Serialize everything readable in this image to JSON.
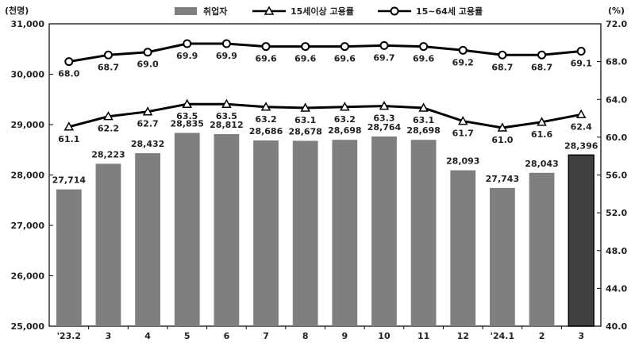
{
  "chart_data": {
    "type": "bar",
    "left_unit": "(천명)",
    "right_unit": "(%)",
    "categories": [
      "'23.2",
      "3",
      "4",
      "5",
      "6",
      "7",
      "8",
      "9",
      "10",
      "11",
      "12",
      "'24.1",
      "2",
      "3"
    ],
    "left_ticks": [
      "31,000",
      "30,000",
      "29,000",
      "28,000",
      "27,000",
      "26,000",
      "25,000"
    ],
    "right_ticks": [
      "72.0",
      "68.0",
      "64.0",
      "60.0",
      "56.0",
      "52.0",
      "48.0",
      "44.0",
      "40.0"
    ],
    "ylim_left": [
      25000,
      31000
    ],
    "ylim_right": [
      40.0,
      72.0
    ],
    "legend_position": "top",
    "series": [
      {
        "name": "취업자",
        "kind": "bar",
        "axis": "left",
        "values": [
          27714,
          28223,
          28432,
          28835,
          28812,
          28686,
          28678,
          28698,
          28764,
          28698,
          28093,
          27743,
          28043,
          28396
        ],
        "labels": [
          "27,714",
          "28,223",
          "28,432",
          "28,835",
          "28,812",
          "28,686",
          "28,678",
          "28,698",
          "28,764",
          "28,698",
          "28,093",
          "27,743",
          "28,043",
          "28,396"
        ],
        "color": "#7f7f7f",
        "highlight_color": "#404040",
        "highlight_index": 13
      },
      {
        "name": "15세이상 고용률",
        "kind": "line",
        "marker": "triangle",
        "axis": "right",
        "values": [
          61.1,
          62.2,
          62.7,
          63.5,
          63.5,
          63.2,
          63.1,
          63.2,
          63.3,
          63.1,
          61.7,
          61.0,
          61.6,
          62.4
        ],
        "labels": [
          "61.1",
          "62.2",
          "62.7",
          "63.5",
          "63.5",
          "63.2",
          "63.1",
          "63.2",
          "63.3",
          "63.1",
          "61.7",
          "61.0",
          "61.6",
          "62.4"
        ],
        "color": "#000000"
      },
      {
        "name": "15~64세 고용률",
        "kind": "line",
        "marker": "circle",
        "axis": "right",
        "values": [
          68.0,
          68.7,
          69.0,
          69.9,
          69.9,
          69.6,
          69.6,
          69.6,
          69.7,
          69.6,
          69.2,
          68.7,
          68.7,
          69.1
        ],
        "labels": [
          "68.0",
          "68.7",
          "69.0",
          "69.9",
          "69.9",
          "69.6",
          "69.6",
          "69.6",
          "69.7",
          "69.6",
          "69.2",
          "68.7",
          "68.7",
          "69.1"
        ],
        "color": "#000000"
      }
    ]
  }
}
